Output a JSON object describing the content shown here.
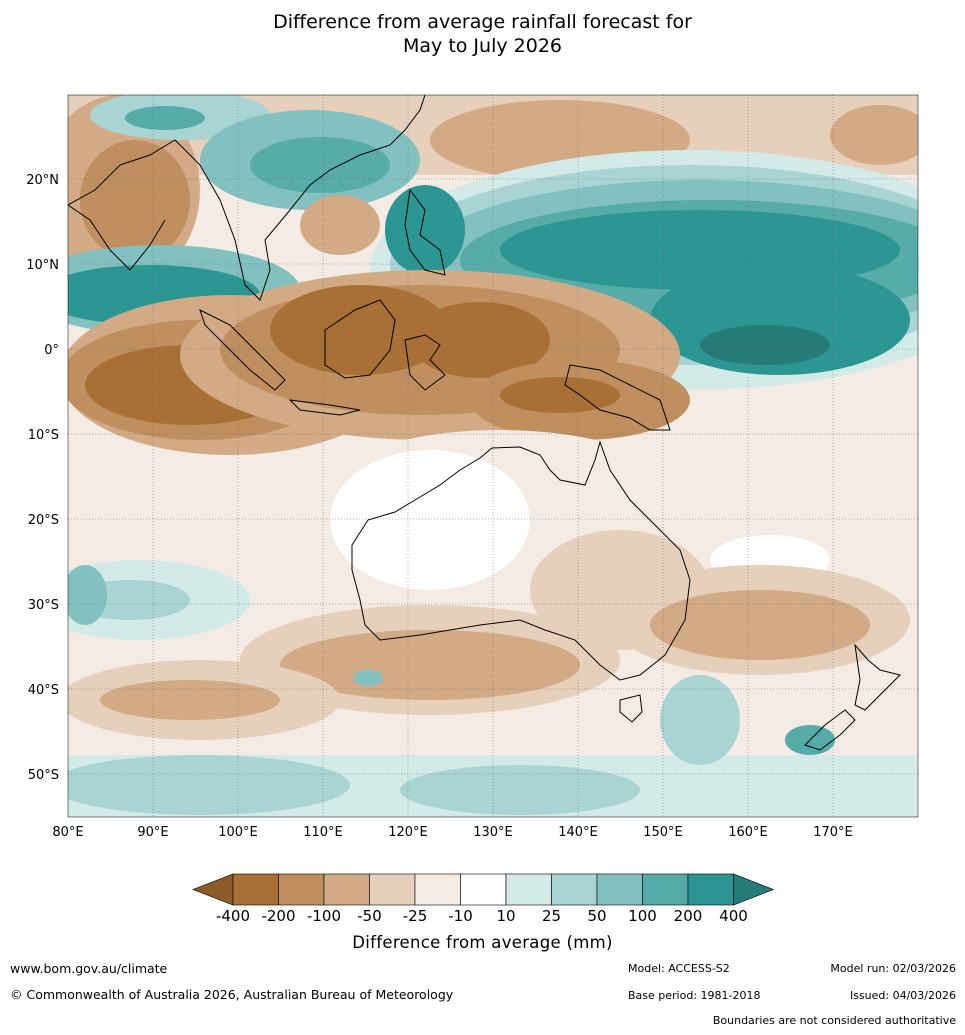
{
  "title": {
    "line1": "Difference from average rainfall forecast for",
    "line2": "May to July 2026"
  },
  "map": {
    "lon_labels": [
      "80°E",
      "90°E",
      "100°E",
      "110°E",
      "120°E",
      "130°E",
      "140°E",
      "150°E",
      "160°E",
      "170°E"
    ],
    "lat_labels": [
      "20°N",
      "10°N",
      "0°",
      "10°S",
      "20°S",
      "30°S",
      "40°S",
      "50°S"
    ],
    "lon_range": [
      80,
      180
    ],
    "lat_range": [
      -55,
      30
    ],
    "grid": true,
    "land_outline_color": "#000000",
    "boundary_color": "#888888"
  },
  "colorbar": {
    "ticks": [
      "-400",
      "-200",
      "-100",
      "-50",
      "-25",
      "-10",
      "10",
      "25",
      "50",
      "100",
      "200",
      "400"
    ],
    "colors": [
      "#a97036",
      "#bf8f60",
      "#d2aa85",
      "#e6d0bb",
      "#f4ebe5",
      "#ffffff",
      "#d4eae8",
      "#a8d5d3",
      "#82c1bf",
      "#57aba8",
      "#2c9693"
    ],
    "extend_low": "#8d5a29",
    "extend_high": "#267b78",
    "label": "Difference from average (mm)"
  },
  "footer": {
    "url": "www.bom.gov.au/climate",
    "copyright": "© Commonwealth of Australia 2026, Australian Bureau of Meteorology",
    "model": "Model: ACCESS-S2",
    "base_period": "Base period: 1981-2018",
    "model_run": "Model run: 02/03/2026",
    "issued": "Issued: 04/03/2026",
    "boundaries": "Boundaries are not considered authoritative"
  }
}
